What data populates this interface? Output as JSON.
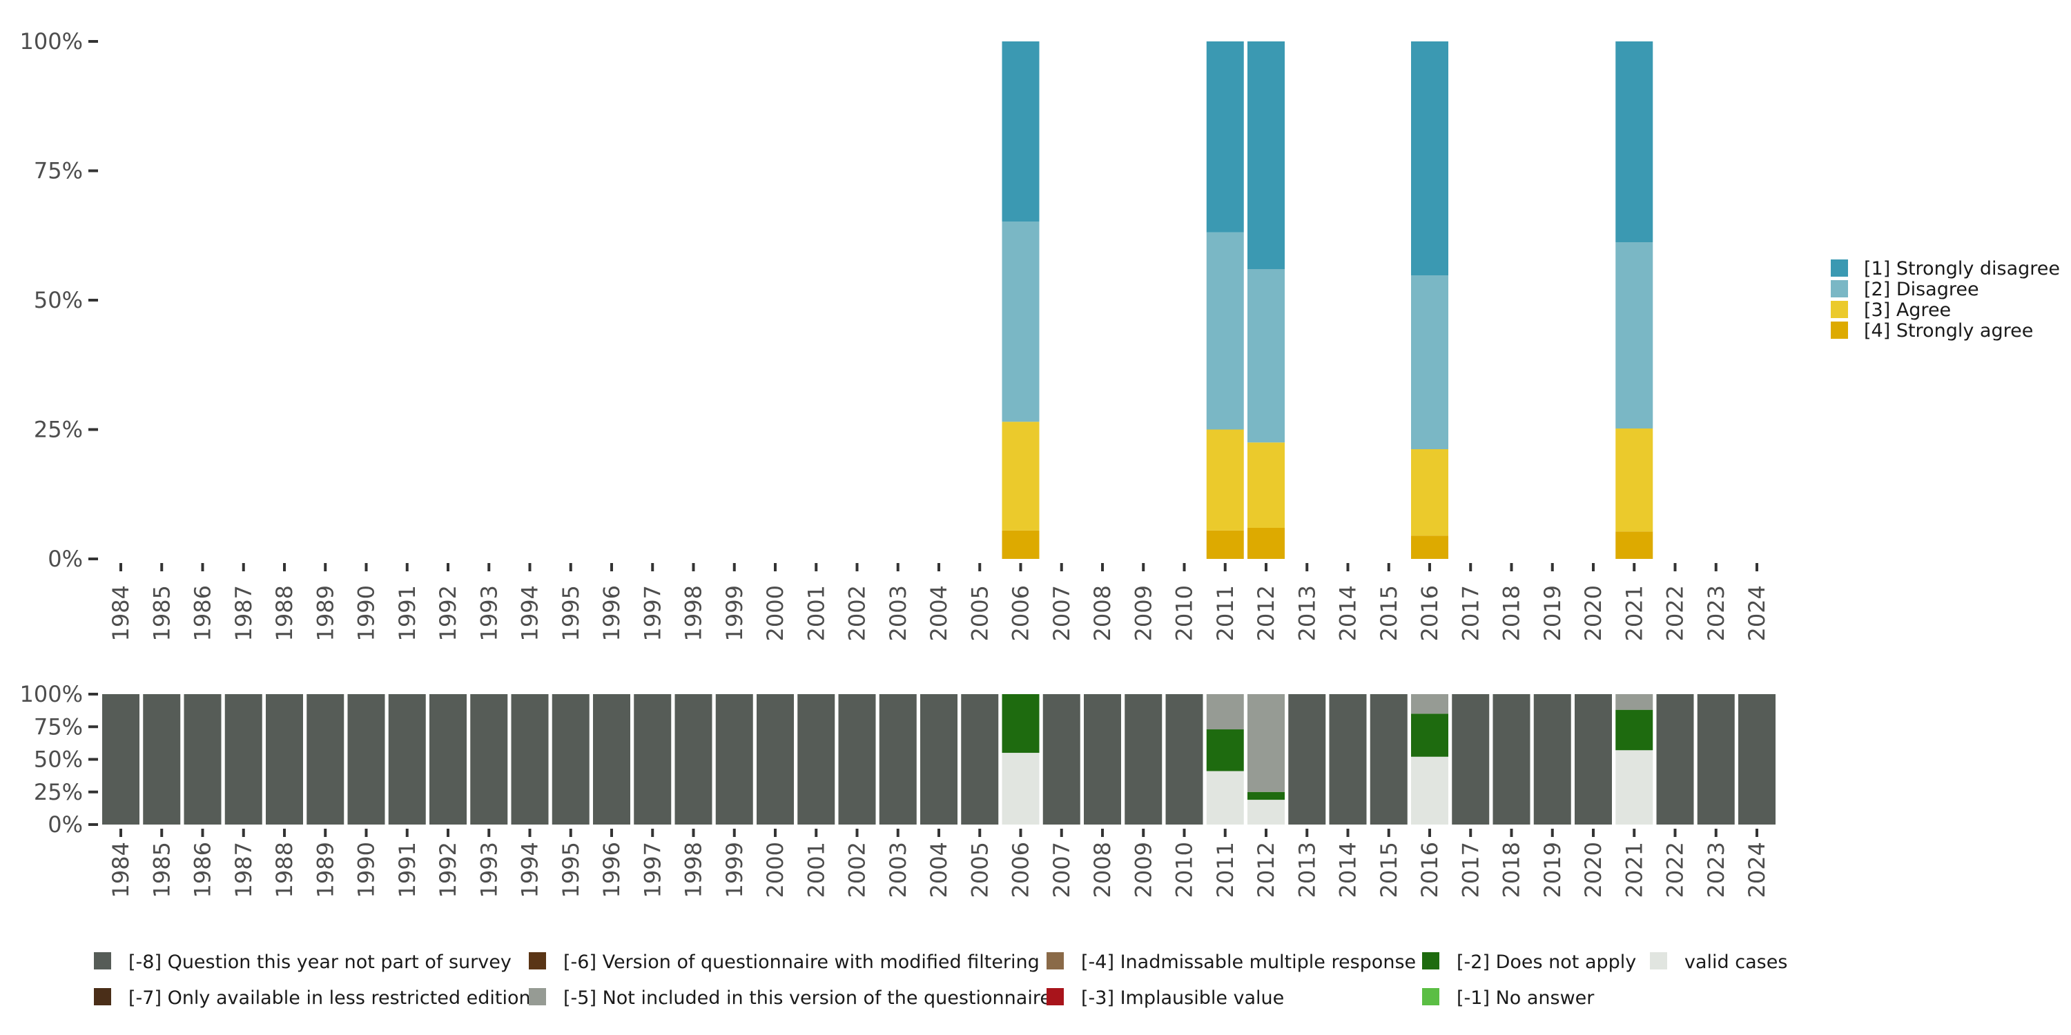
{
  "chart_data": [
    {
      "type": "bar",
      "stacked": true,
      "normalized": true,
      "title": "",
      "xlabel": "",
      "ylabel": "",
      "ylim": [
        0,
        100
      ],
      "y_ticks": [
        "0%",
        "25%",
        "50%",
        "75%",
        "100%"
      ],
      "categories": [
        "1984",
        "1985",
        "1986",
        "1987",
        "1988",
        "1989",
        "1990",
        "1991",
        "1992",
        "1993",
        "1994",
        "1995",
        "1996",
        "1997",
        "1998",
        "1999",
        "2000",
        "2001",
        "2002",
        "2003",
        "2004",
        "2005",
        "2006",
        "2007",
        "2008",
        "2009",
        "2010",
        "2011",
        "2012",
        "2013",
        "2014",
        "2015",
        "2016",
        "2017",
        "2018",
        "2019",
        "2020",
        "2021",
        "2022",
        "2023",
        "2024"
      ],
      "legend_position": "right",
      "series": [
        {
          "name": "[4] Strongly agree",
          "color": "#DDAA00",
          "values": {
            "2006": 5.5,
            "2011": 5.5,
            "2012": 6.0,
            "2016": 4.5,
            "2021": 5.3
          }
        },
        {
          "name": "[3] Agree",
          "color": "#EBCA2C",
          "values": {
            "2006": 21.0,
            "2011": 19.5,
            "2012": 16.5,
            "2016": 16.7,
            "2021": 19.9
          }
        },
        {
          "name": "[2] Disagree",
          "color": "#7AB7C5",
          "values": {
            "2006": 38.7,
            "2011": 38.1,
            "2012": 33.5,
            "2016": 33.6,
            "2021": 36.0
          }
        },
        {
          "name": "[1] Strongly disagree",
          "color": "#3B99B2",
          "values": {
            "2006": 34.8,
            "2011": 36.9,
            "2012": 44.0,
            "2016": 45.2,
            "2021": 38.8
          }
        }
      ]
    },
    {
      "type": "bar",
      "stacked": true,
      "normalized": true,
      "title": "",
      "xlabel": "",
      "ylabel": "",
      "ylim": [
        0,
        100
      ],
      "y_ticks": [
        "0%",
        "25%",
        "50%",
        "75%",
        "100%"
      ],
      "categories": [
        "1984",
        "1985",
        "1986",
        "1987",
        "1988",
        "1989",
        "1990",
        "1991",
        "1992",
        "1993",
        "1994",
        "1995",
        "1996",
        "1997",
        "1998",
        "1999",
        "2000",
        "2001",
        "2002",
        "2003",
        "2004",
        "2005",
        "2006",
        "2007",
        "2008",
        "2009",
        "2010",
        "2011",
        "2012",
        "2013",
        "2014",
        "2015",
        "2016",
        "2017",
        "2018",
        "2019",
        "2020",
        "2021",
        "2022",
        "2023",
        "2024"
      ],
      "legend_position": "bottom",
      "series": [
        {
          "name": "valid cases",
          "color": "#E1E5E0",
          "values": {
            "2006": 55,
            "2011": 41,
            "2012": 19,
            "2016": 52,
            "2021": 57
          }
        },
        {
          "name": "[-2] Does not apply",
          "color": "#1E6B0F",
          "values": {
            "2006": 45,
            "2011": 32,
            "2012": 6,
            "2016": 33,
            "2021": 31
          }
        },
        {
          "name": "[-5] Not included in this version of the questionnaire",
          "color": "#969B94",
          "values": {
            "2006": 0,
            "2011": 27,
            "2012": 75,
            "2016": 15,
            "2021": 12
          }
        },
        {
          "name": "[-8] Question this year not part of survey",
          "color": "#565C57",
          "values": {
            "1984": 100,
            "1985": 100,
            "1986": 100,
            "1987": 100,
            "1988": 100,
            "1989": 100,
            "1990": 100,
            "1991": 100,
            "1992": 100,
            "1993": 100,
            "1994": 100,
            "1995": 100,
            "1996": 100,
            "1997": 100,
            "1998": 100,
            "1999": 100,
            "2000": 100,
            "2001": 100,
            "2002": 100,
            "2003": 100,
            "2004": 100,
            "2005": 100,
            "2007": 100,
            "2008": 100,
            "2009": 100,
            "2010": 100,
            "2013": 100,
            "2014": 100,
            "2015": 100,
            "2017": 100,
            "2018": 100,
            "2019": 100,
            "2020": 100,
            "2022": 100,
            "2023": 100,
            "2024": 100
          }
        }
      ],
      "legend": [
        {
          "name": "[-8] Question this year not part of survey",
          "color": "#565C57"
        },
        {
          "name": "[-7] Only available in less restricted edition",
          "color": "#4A2E18"
        },
        {
          "name": "[-6] Version of questionnaire with modified filtering",
          "color": "#5A3516"
        },
        {
          "name": "[-5] Not included in this version of the questionnaire",
          "color": "#969B94"
        },
        {
          "name": "[-4] Inadmissable multiple response",
          "color": "#8A6A48"
        },
        {
          "name": "[-3] Implausible value",
          "color": "#A8141B"
        },
        {
          "name": "[-2] Does not apply",
          "color": "#1E6B0F"
        },
        {
          "name": "[-1] No answer",
          "color": "#5BBE44"
        },
        {
          "name": "valid cases",
          "color": "#E1E5E0"
        }
      ]
    }
  ]
}
